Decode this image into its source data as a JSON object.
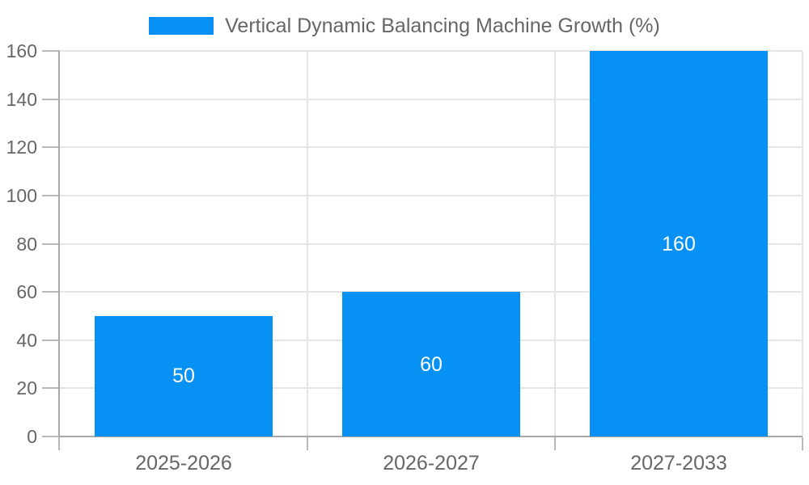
{
  "chart_data": {
    "type": "bar",
    "title": "Vertical Dynamic Balancing Machine Growth (%)",
    "categories": [
      "2025-2026",
      "2026-2027",
      "2027-2033"
    ],
    "values": [
      50,
      60,
      160
    ],
    "bar_labels": [
      "50",
      "60",
      "160"
    ],
    "y_ticks": [
      0,
      20,
      40,
      60,
      80,
      100,
      120,
      140,
      160
    ],
    "ylim": [
      0,
      160
    ],
    "xlabel": "",
    "ylabel": "",
    "legend_position": "top",
    "grid": true,
    "bar_label_position": "center",
    "colors": {
      "bar": "#0891f5",
      "grid": "#e5e5e5",
      "axis": "#a8a8a8",
      "tick": "#b8b8b8",
      "text": "#666666",
      "bar_label_text": "#ffffff",
      "background": "#ffffff"
    }
  }
}
